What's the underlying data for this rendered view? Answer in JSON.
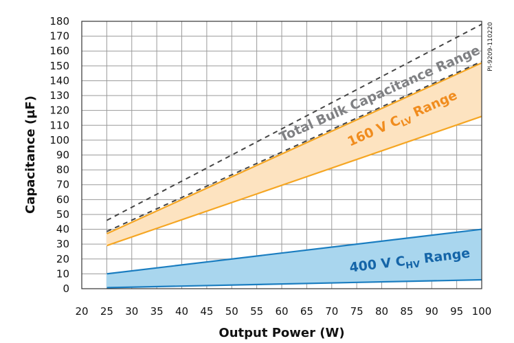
{
  "chart_data": {
    "type": "area",
    "title": "",
    "xlabel": "Output Power (W)",
    "ylabel": "Capacitance (µF)",
    "xlim": [
      20,
      100
    ],
    "ylim": [
      0,
      180
    ],
    "xticks": [
      20,
      25,
      30,
      35,
      40,
      45,
      50,
      55,
      60,
      65,
      70,
      75,
      80,
      85,
      90,
      95,
      100
    ],
    "yticks": [
      0,
      10,
      20,
      30,
      40,
      50,
      60,
      70,
      80,
      90,
      100,
      110,
      120,
      130,
      140,
      150,
      160,
      170,
      180
    ],
    "grid": true,
    "bands": [
      {
        "label_main": "160 V C",
        "label_sub": "LV",
        "label_tail": " Range",
        "color": "#f5a623",
        "fill": "#fde3c0",
        "x": [
          25,
          100
        ],
        "lower": [
          29,
          116
        ],
        "upper": [
          37,
          152
        ]
      },
      {
        "label_main": "400 V C",
        "label_sub": "HV",
        "label_tail": " Range",
        "color": "#1a7dc0",
        "fill": "#a9d6ee",
        "x": [
          25,
          100
        ],
        "lower": [
          0.7,
          6
        ],
        "upper": [
          10,
          40
        ]
      }
    ],
    "dashed_lines": [
      {
        "x": [
          25,
          100
        ],
        "y": [
          46,
          178
        ]
      },
      {
        "x": [
          25,
          100
        ],
        "y": [
          38.5,
          153
        ]
      }
    ],
    "annotations": [
      {
        "text": "Total Bulk Capacitance Range",
        "color": "#7f8083"
      }
    ],
    "side_label": "PI-9209-110220"
  }
}
